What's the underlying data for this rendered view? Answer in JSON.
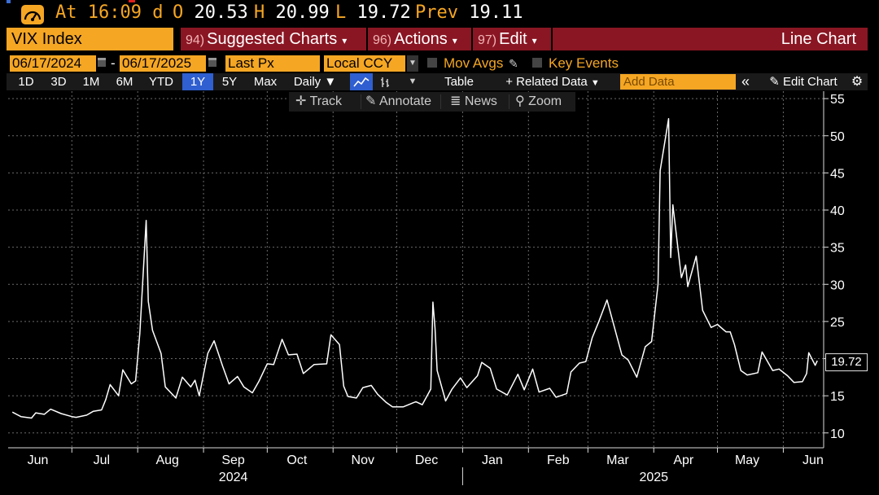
{
  "ticker": {
    "at_label": "At",
    "time": "16:09",
    "time_flag": "d",
    "open_label": "O",
    "open": "20.53",
    "high_label": "H",
    "high": "20.99",
    "low_label": "L",
    "low": "19.72",
    "prev_label": "Prev",
    "prev": "19.11"
  },
  "titlebar": {
    "security": "VIX Index",
    "charts_num": "94)",
    "charts_label": "Suggested Charts",
    "actions_num": "96)",
    "actions_label": "Actions",
    "edit_num": "97)",
    "edit_label": "Edit",
    "chart_type": "Line Chart"
  },
  "controls": {
    "start_date": "06/17/2024",
    "dash": "-",
    "end_date": "06/17/2025",
    "field": "Last Px",
    "currency": "Local CCY",
    "mov_avgs": "Mov Avgs",
    "key_events": "Key Events"
  },
  "toolbar": {
    "periods": [
      "1D",
      "3D",
      "1M",
      "6M",
      "YTD",
      "1Y",
      "5Y",
      "Max"
    ],
    "selected_period": "1Y",
    "frequency": "Daily",
    "table": "Table",
    "related_data": "Related Data",
    "add_data_placeholder": "Add Data",
    "edit_chart": "Edit Chart"
  },
  "chart_tools": {
    "track": "Track",
    "annotate": "Annotate",
    "news": "News",
    "zoom": "Zoom"
  },
  "colors": {
    "accent_orange": "#f5a623",
    "header_red": "#8a1623",
    "selected_blue": "#2f5fd0",
    "line": "#ffffff",
    "grid": "#6a6a6a"
  },
  "chart_data": {
    "type": "line",
    "title": "",
    "series": [
      {
        "name": "VIX Index",
        "values": [
          [
            "2024-06-03",
            12.8
          ],
          [
            "2024-06-07",
            12.2
          ],
          [
            "2024-06-12",
            12.0
          ],
          [
            "2024-06-14",
            12.7
          ],
          [
            "2024-06-18",
            12.5
          ],
          [
            "2024-06-21",
            13.2
          ],
          [
            "2024-06-26",
            12.6
          ],
          [
            "2024-07-01",
            12.2
          ],
          [
            "2024-07-03",
            12.1
          ],
          [
            "2024-07-08",
            12.4
          ],
          [
            "2024-07-11",
            12.9
          ],
          [
            "2024-07-15",
            13.1
          ],
          [
            "2024-07-17",
            14.5
          ],
          [
            "2024-07-19",
            16.5
          ],
          [
            "2024-07-23",
            15.0
          ],
          [
            "2024-07-25",
            18.5
          ],
          [
            "2024-07-29",
            16.6
          ],
          [
            "2024-07-31",
            17.0
          ],
          [
            "2024-08-02",
            23.4
          ],
          [
            "2024-08-05",
            38.6
          ],
          [
            "2024-08-06",
            27.7
          ],
          [
            "2024-08-08",
            23.8
          ],
          [
            "2024-08-12",
            20.7
          ],
          [
            "2024-08-14",
            16.2
          ],
          [
            "2024-08-19",
            14.7
          ],
          [
            "2024-08-22",
            17.5
          ],
          [
            "2024-08-26",
            16.2
          ],
          [
            "2024-08-28",
            17.1
          ],
          [
            "2024-08-30",
            15.0
          ],
          [
            "2024-09-03",
            20.7
          ],
          [
            "2024-09-06",
            22.4
          ],
          [
            "2024-09-10",
            19.0
          ],
          [
            "2024-09-13",
            16.6
          ],
          [
            "2024-09-17",
            17.6
          ],
          [
            "2024-09-20",
            16.2
          ],
          [
            "2024-09-24",
            15.4
          ],
          [
            "2024-09-27",
            16.9
          ],
          [
            "2024-10-01",
            19.3
          ],
          [
            "2024-10-04",
            19.2
          ],
          [
            "2024-10-08",
            22.6
          ],
          [
            "2024-10-11",
            20.5
          ],
          [
            "2024-10-15",
            20.6
          ],
          [
            "2024-10-18",
            18.0
          ],
          [
            "2024-10-23",
            19.2
          ],
          [
            "2024-10-29",
            19.3
          ],
          [
            "2024-10-31",
            23.2
          ],
          [
            "2024-11-04",
            21.9
          ],
          [
            "2024-11-06",
            16.3
          ],
          [
            "2024-11-08",
            14.9
          ],
          [
            "2024-11-12",
            14.7
          ],
          [
            "2024-11-15",
            16.1
          ],
          [
            "2024-11-19",
            16.4
          ],
          [
            "2024-11-22",
            15.2
          ],
          [
            "2024-11-26",
            14.1
          ],
          [
            "2024-11-29",
            13.5
          ],
          [
            "2024-12-04",
            13.5
          ],
          [
            "2024-12-10",
            14.2
          ],
          [
            "2024-12-13",
            13.8
          ],
          [
            "2024-12-17",
            15.9
          ],
          [
            "2024-12-18",
            27.6
          ],
          [
            "2024-12-19",
            24.1
          ],
          [
            "2024-12-20",
            18.4
          ],
          [
            "2024-12-24",
            14.3
          ],
          [
            "2024-12-27",
            15.9
          ],
          [
            "2024-12-31",
            17.4
          ],
          [
            "2025-01-03",
            16.1
          ],
          [
            "2025-01-08",
            17.7
          ],
          [
            "2025-01-10",
            19.5
          ],
          [
            "2025-01-14",
            18.7
          ],
          [
            "2025-01-17",
            15.9
          ],
          [
            "2025-01-22",
            15.1
          ],
          [
            "2025-01-27",
            17.9
          ],
          [
            "2025-01-30",
            15.8
          ],
          [
            "2025-02-03",
            18.6
          ],
          [
            "2025-02-06",
            15.5
          ],
          [
            "2025-02-11",
            16.0
          ],
          [
            "2025-02-14",
            14.8
          ],
          [
            "2025-02-19",
            15.3
          ],
          [
            "2025-02-21",
            18.2
          ],
          [
            "2025-02-25",
            19.4
          ],
          [
            "2025-02-28",
            19.6
          ],
          [
            "2025-03-03",
            22.8
          ],
          [
            "2025-03-06",
            24.9
          ],
          [
            "2025-03-10",
            27.9
          ],
          [
            "2025-03-13",
            24.7
          ],
          [
            "2025-03-17",
            20.5
          ],
          [
            "2025-03-20",
            19.8
          ],
          [
            "2025-03-24",
            17.5
          ],
          [
            "2025-03-28",
            21.6
          ],
          [
            "2025-03-31",
            22.3
          ],
          [
            "2025-04-03",
            30.0
          ],
          [
            "2025-04-04",
            45.3
          ],
          [
            "2025-04-08",
            52.3
          ],
          [
            "2025-04-09",
            33.6
          ],
          [
            "2025-04-10",
            40.7
          ],
          [
            "2025-04-14",
            30.9
          ],
          [
            "2025-04-16",
            32.6
          ],
          [
            "2025-04-17",
            29.7
          ],
          [
            "2025-04-21",
            33.8
          ],
          [
            "2025-04-24",
            26.5
          ],
          [
            "2025-04-28",
            24.2
          ],
          [
            "2025-05-01",
            24.6
          ],
          [
            "2025-05-05",
            23.6
          ],
          [
            "2025-05-07",
            23.6
          ],
          [
            "2025-05-09",
            21.9
          ],
          [
            "2025-05-12",
            18.4
          ],
          [
            "2025-05-15",
            17.8
          ],
          [
            "2025-05-20",
            18.1
          ],
          [
            "2025-05-22",
            20.9
          ],
          [
            "2025-05-27",
            18.4
          ],
          [
            "2025-05-30",
            18.6
          ],
          [
            "2025-06-03",
            17.7
          ],
          [
            "2025-06-06",
            16.8
          ],
          [
            "2025-06-10",
            16.9
          ],
          [
            "2025-06-12",
            18.0
          ],
          [
            "2025-06-13",
            20.8
          ],
          [
            "2025-06-16",
            19.1
          ],
          [
            "2025-06-17",
            19.72
          ]
        ]
      }
    ],
    "x_range": [
      "2024-06-01",
      "2025-06-20"
    ],
    "ylim": [
      8,
      56
    ],
    "y_ticks": [
      10,
      15,
      20,
      25,
      30,
      35,
      40,
      45,
      50,
      55
    ],
    "x_ticks": [
      {
        "date": "2024-06-15",
        "label": "Jun"
      },
      {
        "date": "2024-07-15",
        "label": "Jul"
      },
      {
        "date": "2024-08-15",
        "label": "Aug"
      },
      {
        "date": "2024-09-15",
        "label": "Sep"
      },
      {
        "date": "2024-10-15",
        "label": "Oct"
      },
      {
        "date": "2024-11-15",
        "label": "Nov"
      },
      {
        "date": "2024-12-15",
        "label": "Dec"
      },
      {
        "date": "2025-01-15",
        "label": "Jan"
      },
      {
        "date": "2025-02-15",
        "label": "Feb"
      },
      {
        "date": "2025-03-15",
        "label": "Mar"
      },
      {
        "date": "2025-04-15",
        "label": "Apr"
      },
      {
        "date": "2025-05-15",
        "label": "May"
      },
      {
        "date": "2025-06-15",
        "label": "Jun"
      }
    ],
    "grid_dates": [
      "2024-07-01",
      "2024-08-01",
      "2024-09-01",
      "2024-10-01",
      "2024-11-01",
      "2024-12-01",
      "2025-01-01",
      "2025-02-01",
      "2025-03-01",
      "2025-04-01",
      "2025-05-01",
      "2025-06-01"
    ],
    "year_labels": [
      {
        "date": "2024-09-15",
        "label": "2024"
      },
      {
        "date": "2025-04-01",
        "label": "2025"
      }
    ],
    "year_divider": "2025-01-01",
    "last_value": "19.72",
    "grid": true,
    "y_axis_side": "right"
  }
}
